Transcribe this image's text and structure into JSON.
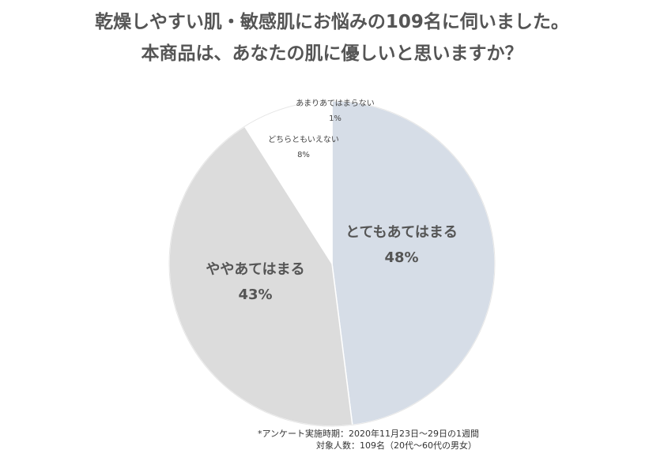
{
  "header": {
    "title_line1": "乾燥しやすい肌・敏感肌にお悩みの109名に伺いました。",
    "title_line2": "本商品は、あなたの肌に優しいと思いますか？"
  },
  "chart_data": {
    "type": "pie",
    "title": "本商品は、あなたの肌に優しいと思いますか？",
    "slices": [
      {
        "label": "とてもあてはまる",
        "value": 48,
        "value_label": "48%",
        "color": "#d6dde7"
      },
      {
        "label": "ややあてはまる",
        "value": 43,
        "value_label": "43%",
        "color": "#dcdcdc"
      },
      {
        "label": "どちらともいえない",
        "value": 8,
        "value_label": "8%",
        "color": "#ffffff"
      },
      {
        "label": "あまりあてはまらない",
        "value": 1,
        "value_label": "1%",
        "color": "#ffffff"
      }
    ],
    "start": "12 o'clock",
    "direction": "clockwise"
  },
  "footnote": {
    "line1": "*アンケート実施時期：2020年11月23日～29日の1週間",
    "line2": "対象人数：109名（20代～60代の男女）"
  }
}
